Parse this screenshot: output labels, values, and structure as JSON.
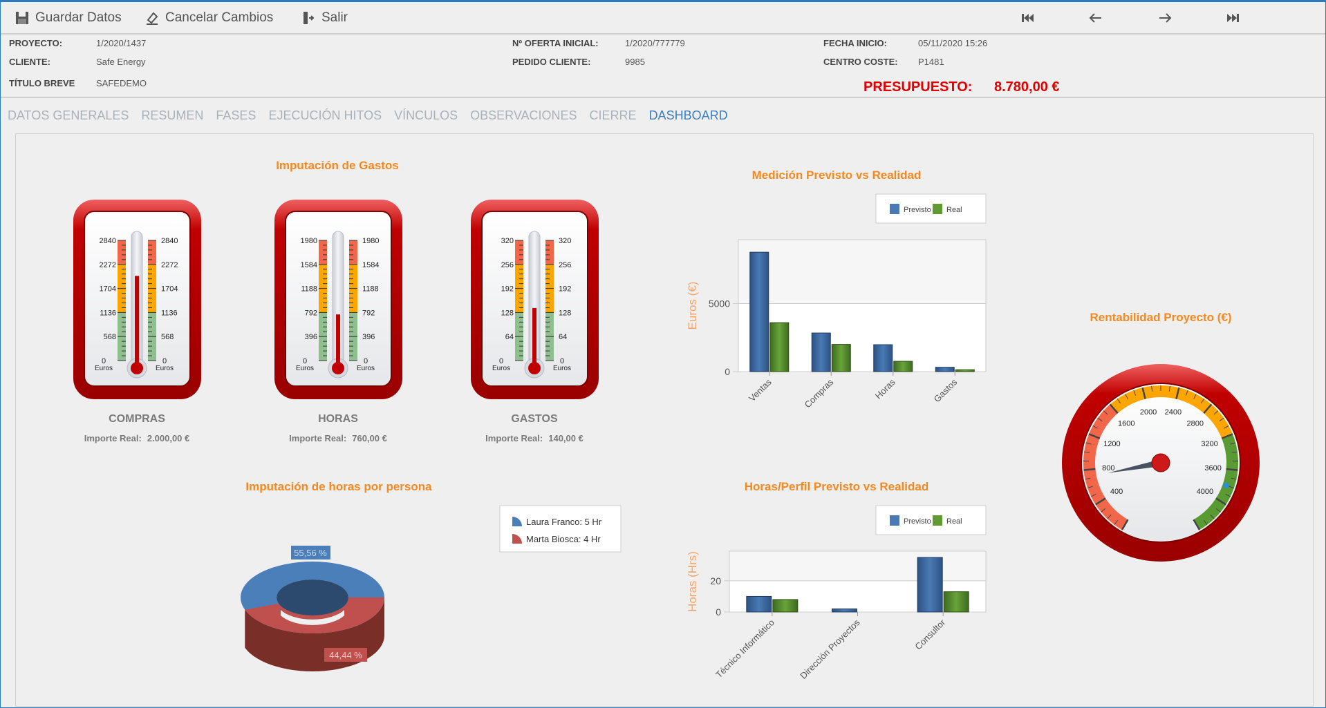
{
  "toolbar": {
    "save": "Guardar Datos",
    "cancel": "Cancelar Cambios",
    "exit": "Salir"
  },
  "header": {
    "proyecto_label": "PROYECTO:",
    "proyecto": "1/2020/1437",
    "cliente_label": "CLIENTE:",
    "cliente": "Safe Energy",
    "titulo_label": "TÍTULO BREVE",
    "titulo": "SAFEDEMO",
    "oferta_label": "Nº OFERTA INICIAL:",
    "oferta": "1/2020/777779",
    "pedido_label": "PEDIDO CLIENTE:",
    "pedido": "9985",
    "fecha_label": "FECHA INICIO:",
    "fecha": "05/11/2020 15:26",
    "centro_label": "CENTRO COSTE:",
    "centro": "P1481",
    "presupuesto_label": "PRESUPUESTO:",
    "presupuesto": "8.780,00 €"
  },
  "tabs": [
    "DATOS GENERALES",
    "RESUMEN",
    "FASES",
    "EJECUCIÓN HITOS",
    "VÍNCULOS",
    "OBSERVACIONES",
    "CIERRE",
    "DASHBOARD"
  ],
  "active_tab": 7,
  "colors": {
    "accent": "#f5891f",
    "previsto": "#4a7ab5",
    "real": "#5f9a32",
    "laura": "#4a7fba",
    "marta": "#c0504d",
    "presupuesto": "#e00000"
  },
  "chart_data": [
    {
      "type": "thermometer",
      "title": "Imputación de Gastos",
      "gauges": [
        {
          "name": "COMPRAS",
          "value_label": "Importe Real:",
          "value_text": "2.000,00 €",
          "value": 2000,
          "ticks": [
            "0",
            "568",
            "1136",
            "1704",
            "2272",
            "2840"
          ],
          "max": 2840,
          "unit": "Euros"
        },
        {
          "name": "HORAS",
          "value_label": "Importe Real:",
          "value_text": "760,00 €",
          "value": 760,
          "ticks": [
            "0",
            "396",
            "792",
            "1188",
            "1584",
            "1980"
          ],
          "max": 1980,
          "unit": "Euros"
        },
        {
          "name": "GASTOS",
          "value_label": "Importe Real:",
          "value_text": "140,00 €",
          "value": 140,
          "ticks": [
            "0",
            "64",
            "128",
            "192",
            "256",
            "320"
          ],
          "max": 320,
          "unit": "Euros"
        }
      ]
    },
    {
      "type": "bar",
      "title": "Medición Previsto vs Realidad",
      "xlabel": "",
      "ylabel": "Euros (€)",
      "categories": [
        "Ventas",
        "Compras",
        "Horas",
        "Gastos"
      ],
      "series": [
        {
          "name": "Previsto",
          "values": [
            8780,
            2840,
            1980,
            320
          ]
        },
        {
          "name": "Real",
          "values": [
            3600,
            2000,
            760,
            140
          ]
        }
      ],
      "yticks": [
        "0",
        "5000"
      ],
      "ytick_values": [
        0,
        5000
      ],
      "ylim": [
        0,
        9700
      ],
      "legend": "top-right",
      "grid": true
    },
    {
      "type": "pie",
      "title": "Imputación de horas por persona",
      "slices": [
        {
          "label": "Laura Franco: 5 Hr",
          "value": 5,
          "percent": "55,56 %"
        },
        {
          "label": "Marta Biosca: 4 Hr",
          "value": 4,
          "percent": "44,44 %"
        }
      ],
      "legend": "top-right"
    },
    {
      "type": "bar",
      "title": "Horas/Perfil Previsto vs Realidad",
      "xlabel": "",
      "ylabel": "Horas (Hrs)",
      "categories": [
        "Técnico Informático",
        "Dirección Proyectos",
        "Consultor"
      ],
      "series": [
        {
          "name": "Previsto",
          "values": [
            10,
            2,
            35
          ]
        },
        {
          "name": "Real",
          "values": [
            8,
            0,
            13
          ]
        }
      ],
      "yticks": [
        "0",
        "20"
      ],
      "ytick_values": [
        0,
        20
      ],
      "ylim": [
        0,
        39
      ],
      "legend": "top-right",
      "grid": true
    },
    {
      "type": "gauge",
      "title": "Rentabilidad Proyecto (€)",
      "min": 0,
      "max": 4400,
      "value": 720,
      "marker": 3800,
      "labels": [
        "400",
        "800",
        "1200",
        "1600",
        "2000",
        "2400",
        "2800",
        "3200",
        "3600",
        "4000"
      ],
      "label_values": [
        400,
        800,
        1200,
        1600,
        2000,
        2400,
        2800,
        3200,
        3600,
        4000
      ],
      "ranges": [
        {
          "from": 0,
          "to": 1600,
          "color": "#f2674a"
        },
        {
          "from": 1600,
          "to": 3200,
          "color": "#ffa500"
        },
        {
          "from": 3200,
          "to": 4400,
          "color": "#5a9a32"
        }
      ]
    }
  ]
}
